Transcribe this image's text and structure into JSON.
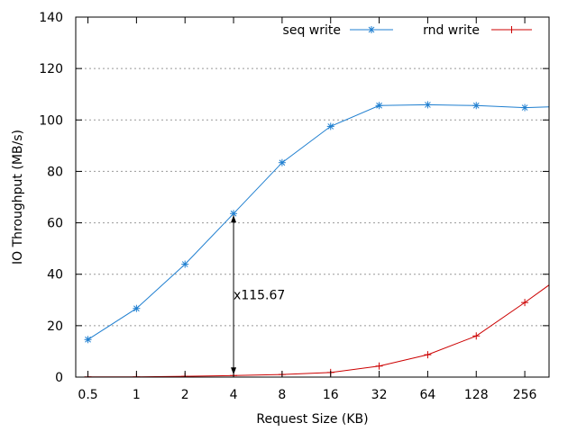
{
  "chart_data": {
    "type": "line",
    "title": "",
    "xlabel": "Request Size (KB)",
    "ylabel": "IO Throughput (MB/s)",
    "x_scale": "log2",
    "xlim": [
      0.42,
      362
    ],
    "ylim": [
      0,
      140
    ],
    "yticks": [
      0,
      20,
      40,
      60,
      80,
      100,
      120,
      140
    ],
    "grid": "horizontal dotted",
    "legend_position": "top-right",
    "categories": [
      0.5,
      1,
      2,
      4,
      8,
      16,
      32,
      64,
      128,
      256
    ],
    "category_labels": [
      "0.5",
      "1",
      "2",
      "4",
      "8",
      "16",
      "32",
      "64",
      "128",
      "256"
    ],
    "series": [
      {
        "name": "seq write",
        "color": "#1f7fd0",
        "marker": "asterisk",
        "x": [
          0.5,
          1,
          2,
          4,
          8,
          16,
          32,
          64,
          128,
          256,
          362
        ],
        "values": [
          14.6,
          26.7,
          43.9,
          63.6,
          83.4,
          97.5,
          105.6,
          105.9,
          105.6,
          104.8,
          105.1
        ]
      },
      {
        "name": "rnd write",
        "color": "#cc0000",
        "marker": "plus",
        "x": [
          0.5,
          1,
          2,
          4,
          8,
          16,
          32,
          64,
          128,
          256,
          362
        ],
        "values": [
          0.1,
          0.1,
          0.3,
          0.6,
          1.0,
          1.8,
          4.3,
          8.7,
          16.0,
          29.0,
          35.8
        ]
      }
    ],
    "annotations": [
      {
        "text": "x115.67",
        "x_from": 4,
        "y_from": 63.6,
        "y_to": 0.6
      }
    ]
  }
}
